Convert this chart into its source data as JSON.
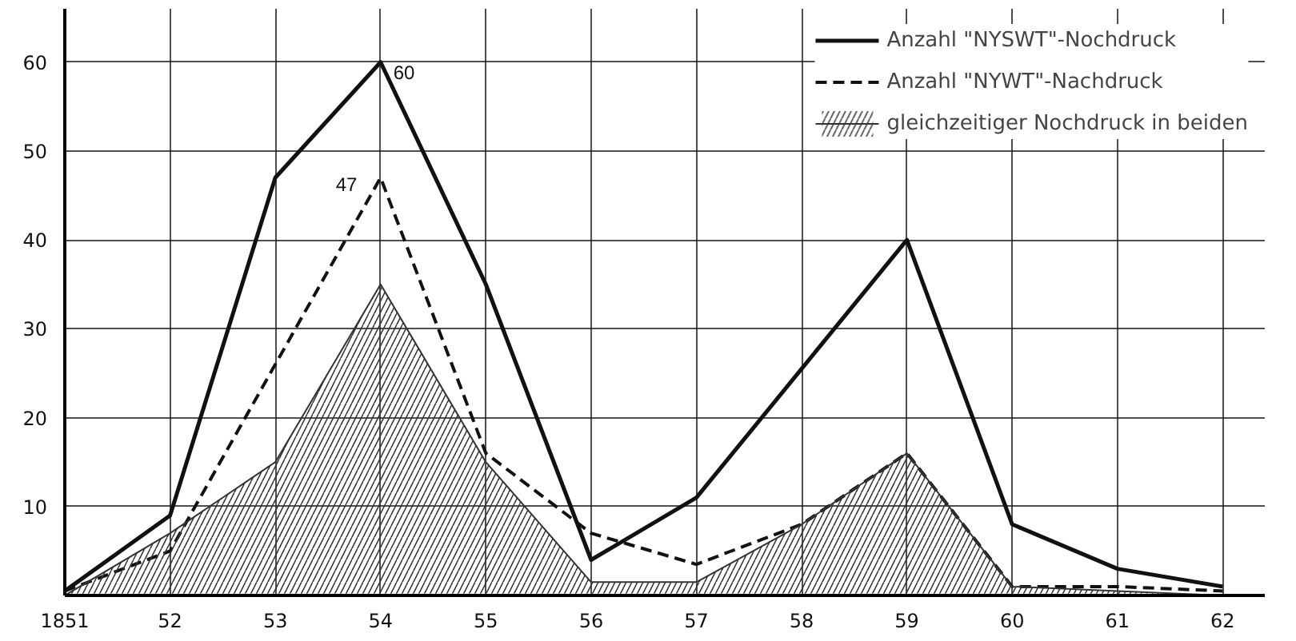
{
  "chart_data": {
    "type": "line",
    "x": [
      1851,
      1852,
      1853,
      1854,
      1855,
      1856,
      1857,
      1858,
      1859,
      1860,
      1861,
      1862
    ],
    "series": [
      {
        "name": "Anzahl \"NYSWT\"-Nochdruck",
        "color": "#111111",
        "line_style": "solid",
        "values": [
          0.5,
          9,
          47,
          60,
          35,
          4,
          11,
          25.5,
          40,
          8,
          3,
          1
        ]
      },
      {
        "name": "Anzahl \"NYWT\"-Nachdruck",
        "color": "#111111",
        "line_style": "dashed",
        "values": [
          0.5,
          5,
          26,
          47,
          16,
          7,
          3.5,
          8,
          16,
          1,
          1,
          0.5
        ]
      },
      {
        "name": "gleichzeitiger Nochdruck in beiden",
        "type": "area",
        "color": "#333333",
        "values": [
          0,
          7,
          15,
          35,
          15,
          1.5,
          1.5,
          8,
          16,
          1,
          0.5,
          0
        ]
      }
    ],
    "xlim": [
      1851,
      1862.4
    ],
    "ylim": [
      0,
      66
    ],
    "xticks": [
      {
        "value": 1851,
        "label": "1851"
      },
      {
        "value": 1852,
        "label": "52"
      },
      {
        "value": 1853,
        "label": "53"
      },
      {
        "value": 1854,
        "label": "54"
      },
      {
        "value": 1855,
        "label": "55"
      },
      {
        "value": 1856,
        "label": "56"
      },
      {
        "value": 1857,
        "label": "57"
      },
      {
        "value": 1858,
        "label": "58"
      },
      {
        "value": 1859,
        "label": "59"
      },
      {
        "value": 1860,
        "label": "60"
      },
      {
        "value": 1861,
        "label": "61"
      },
      {
        "value": 1862,
        "label": "62"
      }
    ],
    "yticks": [
      10,
      20,
      30,
      40,
      50,
      60
    ],
    "annotations": [
      {
        "text": "60",
        "x": 1854,
        "y": 60
      },
      {
        "text": "47",
        "x": 1854,
        "y": 47
      }
    ],
    "grid": true,
    "legend": "top right",
    "marker": "none"
  }
}
